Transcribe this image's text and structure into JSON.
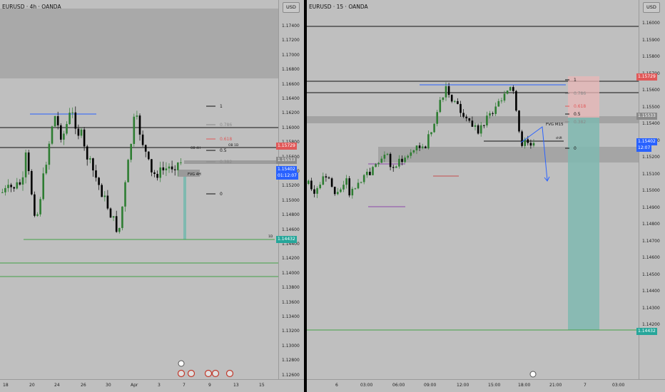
{
  "left": {
    "title": "EURUSD · 4h · OANDA",
    "unit": "USD",
    "price_ticks": [
      "1.17400",
      "1.17200",
      "1.17000",
      "1.16800",
      "1.16600",
      "1.16400",
      "1.16200",
      "1.16000",
      "1.15800",
      "1.15600",
      "1.15400",
      "1.15200",
      "1.15000",
      "1.14800",
      "1.14600",
      "1.14400",
      "1.14200",
      "1.14000",
      "1.13800",
      "1.13600",
      "1.13400",
      "1.13200",
      "1.13000",
      "1.12800",
      "1.12600"
    ],
    "badges": {
      "red": "1.15729",
      "gray": "1.15533",
      "blue_price": "1.15402",
      "blue_timer": "01:12:07",
      "green": "1.14432"
    },
    "time_labels": [
      "18",
      "20",
      "24",
      "26",
      "30",
      "Apr",
      "3",
      "7",
      "9",
      "13",
      "15"
    ],
    "fib_labels": [
      "1",
      "0.786",
      "0.618",
      "0.5",
      "0.382",
      "0"
    ],
    "annotations": {
      "ob4h": "OB 4H",
      "ob1d": "OB 1D",
      "fvg": "FVG 4H",
      "d1": "1D"
    }
  },
  "right": {
    "title": "EURUSD · 15 · OANDA",
    "unit": "USD",
    "price_ticks": [
      "1.16000",
      "1.15900",
      "1.15800",
      "1.15700",
      "1.15600",
      "1.15500",
      "1.15400",
      "1.15300",
      "1.15200",
      "1.15100",
      "1.15000",
      "1.14900",
      "1.14800",
      "1.14700",
      "1.14600",
      "1.14500",
      "1.14400",
      "1.14300",
      "1.14200"
    ],
    "badges": {
      "red": "1.15729",
      "gray": "1.15533",
      "blue_price": "1.15402",
      "blue_timer": "12:07",
      "green": "1.14432"
    },
    "time_labels": [
      "6",
      "03:00",
      "06:00",
      "09:00",
      "12:00",
      "15:00",
      "18:00",
      "21:00",
      "7",
      "03:00"
    ],
    "fib_labels": [
      "1",
      "0.786",
      "0.618",
      "0.5",
      "0.382",
      "0"
    ],
    "annotations": {
      "fvg": "FVG M15",
      "shift": "shift"
    }
  },
  "colors": {
    "up": "#2e7d32",
    "down": "#000000",
    "red": "#e05858",
    "blue": "#2962ff",
    "gray": "#8a8a8a",
    "green": "#26a69a",
    "line_green": "#43a047"
  }
}
